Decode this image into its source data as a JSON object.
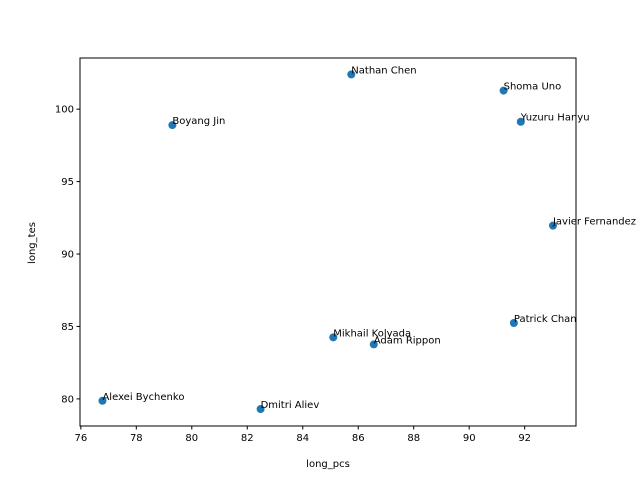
{
  "chart_data": {
    "type": "scatter",
    "xlabel": "long_pcs",
    "ylabel": "long_tes",
    "xlim": [
      75.97,
      93.85
    ],
    "ylim": [
      78.13,
      103.53
    ],
    "xticks": [
      76,
      78,
      80,
      82,
      84,
      86,
      88,
      90,
      92
    ],
    "yticks": [
      80,
      85,
      90,
      95,
      100
    ],
    "marker_color": "#1f77b4",
    "grid": false,
    "points": [
      {
        "label": "Nathan Chen",
        "x": 85.75,
        "y": 102.4
      },
      {
        "label": "Shoma Uno",
        "x": 91.24,
        "y": 101.28
      },
      {
        "label": "Yuzuru Hanyu",
        "x": 91.86,
        "y": 99.13
      },
      {
        "label": "Boyang Jin",
        "x": 79.3,
        "y": 98.9
      },
      {
        "label": "Javier Fernandez",
        "x": 93.02,
        "y": 91.96
      },
      {
        "label": "Patrick Chan",
        "x": 91.61,
        "y": 85.24
      },
      {
        "label": "Mikhail Kolyada",
        "x": 85.1,
        "y": 84.25
      },
      {
        "label": "Adam Rippon",
        "x": 86.56,
        "y": 83.76
      },
      {
        "label": "Alexei Bychenko",
        "x": 76.78,
        "y": 79.87
      },
      {
        "label": "Dmitri Aliev",
        "x": 82.48,
        "y": 79.3
      }
    ]
  }
}
